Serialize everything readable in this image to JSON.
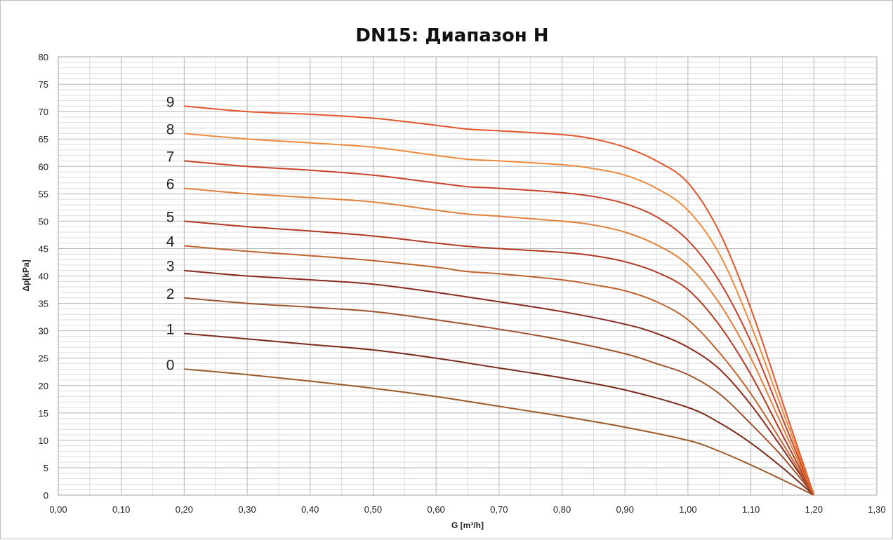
{
  "chart_data": {
    "type": "line",
    "title": "DN15: Диапазон H",
    "xlabel": "G [m³/h]",
    "ylabel": "Δp[kPa]",
    "xlim": [
      0,
      1.3
    ],
    "ylim": [
      0,
      80
    ],
    "x_ticks": [
      "0,00",
      "0,10",
      "0,20",
      "0,30",
      "0,40",
      "0,50",
      "0,60",
      "0,70",
      "0,80",
      "0,90",
      "1,00",
      "1,10",
      "1,20",
      "1,30"
    ],
    "y_ticks": [
      "0",
      "5",
      "10",
      "15",
      "20",
      "25",
      "30",
      "35",
      "40",
      "45",
      "50",
      "55",
      "60",
      "65",
      "70",
      "75",
      "80"
    ],
    "grid": true,
    "legend": "none",
    "series": [
      {
        "name": "0",
        "color": "#9c5a26",
        "x": [
          0.2,
          0.3,
          0.4,
          0.5,
          0.6,
          0.7,
          0.8,
          0.9,
          1.0,
          1.05,
          1.1,
          1.15,
          1.2
        ],
        "y": [
          23,
          22,
          20.8,
          19.5,
          18,
          16.2,
          14.4,
          12.4,
          10,
          8,
          5.5,
          2.8,
          0
        ]
      },
      {
        "name": "1",
        "color": "#7a2a1a",
        "x": [
          0.2,
          0.3,
          0.4,
          0.5,
          0.6,
          0.7,
          0.8,
          0.9,
          1.0,
          1.05,
          1.1,
          1.15,
          1.2
        ],
        "y": [
          29.5,
          28.5,
          27.5,
          26.5,
          25,
          23.2,
          21.4,
          19.2,
          16,
          13.2,
          9.5,
          5,
          0
        ]
      },
      {
        "name": "2",
        "color": "#a0522d",
        "x": [
          0.2,
          0.3,
          0.4,
          0.5,
          0.6,
          0.7,
          0.8,
          0.9,
          0.95,
          1.0,
          1.05,
          1.1,
          1.15,
          1.2
        ],
        "y": [
          36,
          35,
          34.3,
          33.5,
          32,
          30.3,
          28.3,
          25.8,
          24,
          22,
          18.5,
          13,
          7,
          0
        ]
      },
      {
        "name": "3",
        "color": "#8b2a1e",
        "x": [
          0.2,
          0.3,
          0.4,
          0.5,
          0.6,
          0.7,
          0.8,
          0.9,
          0.95,
          1.0,
          1.05,
          1.1,
          1.15,
          1.2
        ],
        "y": [
          41,
          40,
          39.3,
          38.5,
          37,
          35.3,
          33.5,
          31.2,
          29.5,
          27,
          23,
          16.5,
          8.5,
          0
        ]
      },
      {
        "name": "4",
        "color": "#c0642e",
        "x": [
          0.2,
          0.3,
          0.4,
          0.5,
          0.6,
          0.65,
          0.7,
          0.8,
          0.85,
          0.9,
          0.95,
          1.0,
          1.05,
          1.1,
          1.15,
          1.2
        ],
        "y": [
          45.5,
          44.5,
          43.7,
          42.8,
          41.6,
          40.8,
          40.4,
          39.3,
          38.4,
          37.3,
          35.3,
          32,
          26,
          18.5,
          9.5,
          0
        ]
      },
      {
        "name": "5",
        "color": "#b03a22",
        "x": [
          0.2,
          0.3,
          0.4,
          0.5,
          0.6,
          0.65,
          0.7,
          0.8,
          0.85,
          0.9,
          0.95,
          1.0,
          1.05,
          1.1,
          1.15,
          1.2
        ],
        "y": [
          50,
          49,
          48.2,
          47.3,
          46,
          45.4,
          45,
          44.3,
          43.7,
          42.6,
          40.7,
          37.5,
          31,
          22,
          11,
          0
        ]
      },
      {
        "name": "6",
        "color": "#e0803a",
        "x": [
          0.2,
          0.3,
          0.4,
          0.5,
          0.6,
          0.65,
          0.7,
          0.8,
          0.85,
          0.9,
          0.95,
          1.0,
          1.05,
          1.1,
          1.15,
          1.2
        ],
        "y": [
          56,
          55,
          54.3,
          53.5,
          52,
          51.3,
          50.9,
          50,
          49.3,
          48,
          45.7,
          42,
          35,
          25,
          12.5,
          0
        ]
      },
      {
        "name": "7",
        "color": "#c8422a",
        "x": [
          0.2,
          0.3,
          0.4,
          0.5,
          0.6,
          0.65,
          0.7,
          0.8,
          0.85,
          0.9,
          0.95,
          1.0,
          1.05,
          1.1,
          1.15,
          1.2
        ],
        "y": [
          61,
          60,
          59.3,
          58.4,
          57,
          56.3,
          56,
          55.2,
          54.5,
          53.2,
          50.8,
          46.5,
          39,
          28,
          14,
          0
        ]
      },
      {
        "name": "8",
        "color": "#ef8a3a",
        "x": [
          0.2,
          0.3,
          0.4,
          0.5,
          0.6,
          0.65,
          0.7,
          0.8,
          0.85,
          0.9,
          0.95,
          1.0,
          1.05,
          1.1,
          1.15,
          1.2
        ],
        "y": [
          66,
          65,
          64.3,
          63.5,
          62,
          61.3,
          61,
          60.3,
          59.6,
          58.4,
          56,
          52,
          44,
          31,
          15.5,
          0
        ]
      },
      {
        "name": "9",
        "color": "#e5552a",
        "x": [
          0.2,
          0.3,
          0.4,
          0.5,
          0.6,
          0.65,
          0.7,
          0.8,
          0.85,
          0.9,
          0.95,
          1.0,
          1.05,
          1.1,
          1.15,
          1.2
        ],
        "y": [
          71,
          70,
          69.5,
          68.8,
          67.5,
          66.8,
          66.5,
          65.8,
          65,
          63.5,
          61,
          57,
          48,
          34,
          17,
          0
        ]
      }
    ]
  }
}
